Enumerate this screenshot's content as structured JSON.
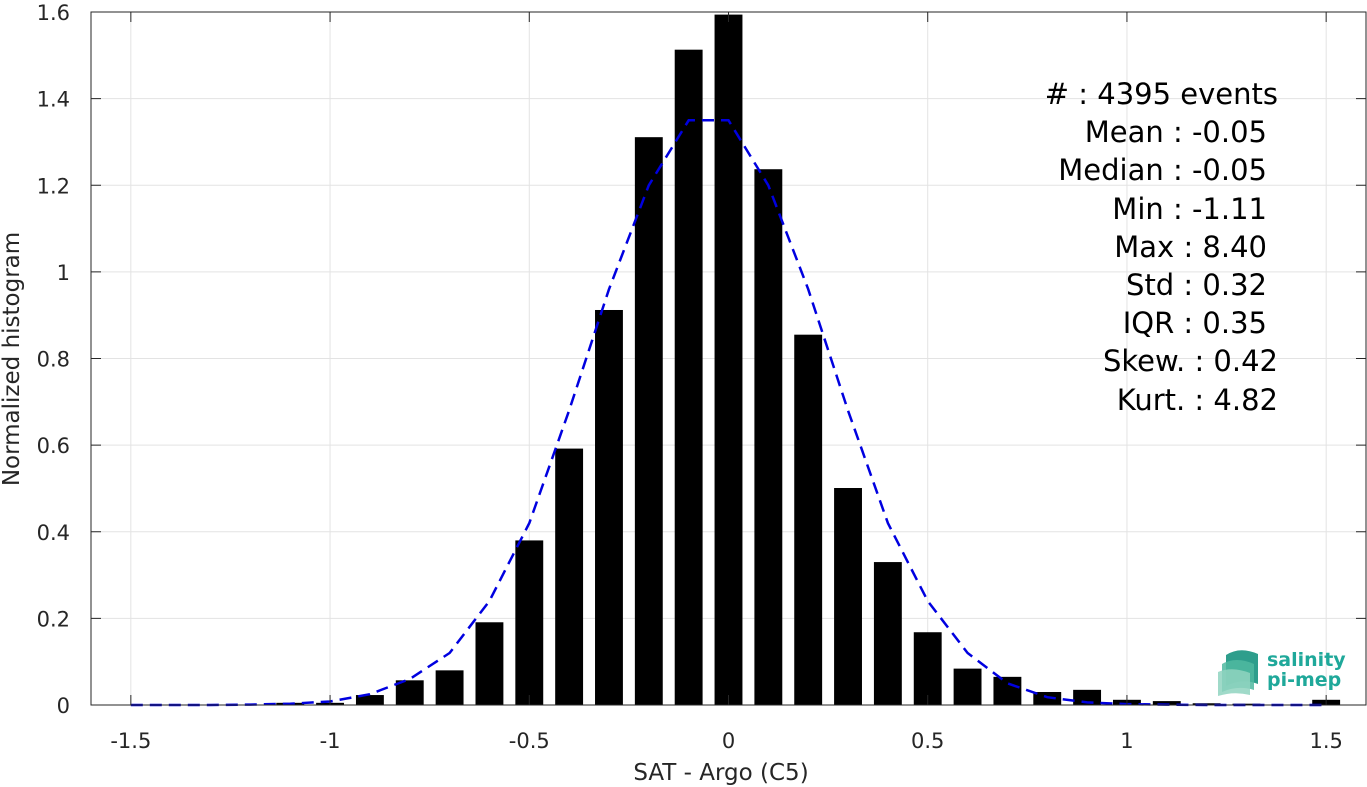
{
  "chart_data": {
    "type": "bar",
    "xlabel": "SAT - Argo (C5)",
    "ylabel": "Normalized histogram",
    "xlim": [
      -1.6,
      1.6
    ],
    "ylim": [
      0,
      1.6
    ],
    "xticks": [
      -1.5,
      -1,
      -0.5,
      0,
      0.5,
      1,
      1.5
    ],
    "xtick_labels": [
      "-1.5",
      "-1",
      "-0.5",
      "0",
      "0.5",
      "1",
      "1.5"
    ],
    "yticks": [
      0,
      0.2,
      0.4,
      0.6,
      0.8,
      1,
      1.2,
      1.4,
      1.6
    ],
    "ytick_labels": [
      "0",
      "0.2",
      "0.4",
      "0.6",
      "0.8",
      "1",
      "1.2",
      "1.4",
      "1.6"
    ],
    "grid": true,
    "bar_width": 0.07,
    "bars": {
      "x": [
        -1.1,
        -1.0,
        -0.9,
        -0.8,
        -0.7,
        -0.6,
        -0.5,
        -0.4,
        -0.3,
        -0.2,
        -0.1,
        0.0,
        0.1,
        0.2,
        0.3,
        0.4,
        0.5,
        0.6,
        0.7,
        0.8,
        0.9,
        1.0,
        1.1,
        1.2,
        1.3,
        1.5
      ],
      "values": [
        0.005,
        0.005,
        0.023,
        0.057,
        0.08,
        0.191,
        0.38,
        0.592,
        0.912,
        1.311,
        1.513,
        1.594,
        1.237,
        0.855,
        0.501,
        0.33,
        0.168,
        0.084,
        0.065,
        0.03,
        0.035,
        0.012,
        0.009,
        0.004,
        0.003,
        0.012
      ],
      "color": "#000000"
    },
    "fit_curve": {
      "style": "dashed",
      "color": "#0000e0",
      "x": [
        -1.5,
        -1.4,
        -1.3,
        -1.2,
        -1.1,
        -1.0,
        -0.9,
        -0.8,
        -0.7,
        -0.6,
        -0.5,
        -0.4,
        -0.3,
        -0.2,
        -0.1,
        0.0,
        0.1,
        0.2,
        0.3,
        0.4,
        0.5,
        0.6,
        0.7,
        0.8,
        0.9,
        1.0,
        1.1,
        1.2,
        1.3,
        1.4,
        1.5
      ],
      "y": [
        0.0,
        0.0,
        0.0,
        0.001,
        0.003,
        0.008,
        0.025,
        0.06,
        0.12,
        0.24,
        0.42,
        0.68,
        0.96,
        1.2,
        1.35,
        1.35,
        1.2,
        0.96,
        0.68,
        0.42,
        0.24,
        0.12,
        0.05,
        0.018,
        0.006,
        0.002,
        0.001,
        0.0,
        0.0,
        0.0,
        0.0
      ]
    }
  },
  "stats": [
    {
      "label": "#  : 4395 events"
    },
    {
      "label": "Mean : -0.05"
    },
    {
      "label": "Median : -0.05"
    },
    {
      "label": "Min : -1.11"
    },
    {
      "label": "Max : 8.40"
    },
    {
      "label": "Std : 0.32"
    },
    {
      "label": "IQR : 0.35"
    },
    {
      "label": "Skew. : 0.42"
    },
    {
      "label": "Kurt. : 4.82"
    }
  ],
  "logo": {
    "line1": "salinity",
    "line2": "pi-mep",
    "color": "#1fa89a"
  }
}
